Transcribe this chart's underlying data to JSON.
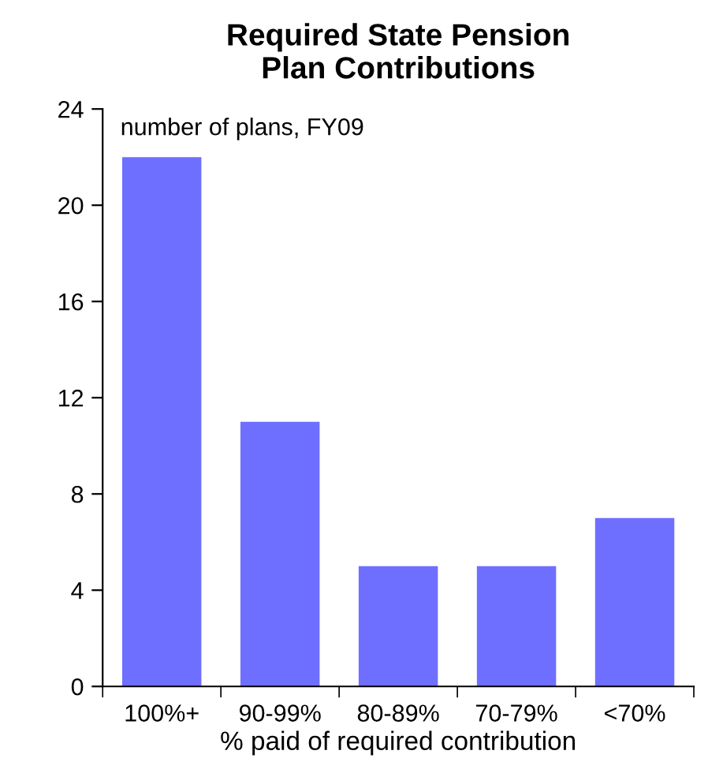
{
  "chart_data": {
    "type": "bar",
    "title": "Required State Pension\nPlan Contributions",
    "xlabel": "% paid of required contribution",
    "annotations": [
      "number of plans, FY09"
    ],
    "categories": [
      "100%+",
      "90-99%",
      "80-89%",
      "70-79%",
      "<70%"
    ],
    "values": [
      22,
      11,
      5,
      5,
      7
    ],
    "color": "#6f6fff",
    "ylim": [
      0,
      24
    ],
    "yticks": [
      0,
      4,
      8,
      12,
      16,
      20,
      24
    ],
    "grid": false
  }
}
